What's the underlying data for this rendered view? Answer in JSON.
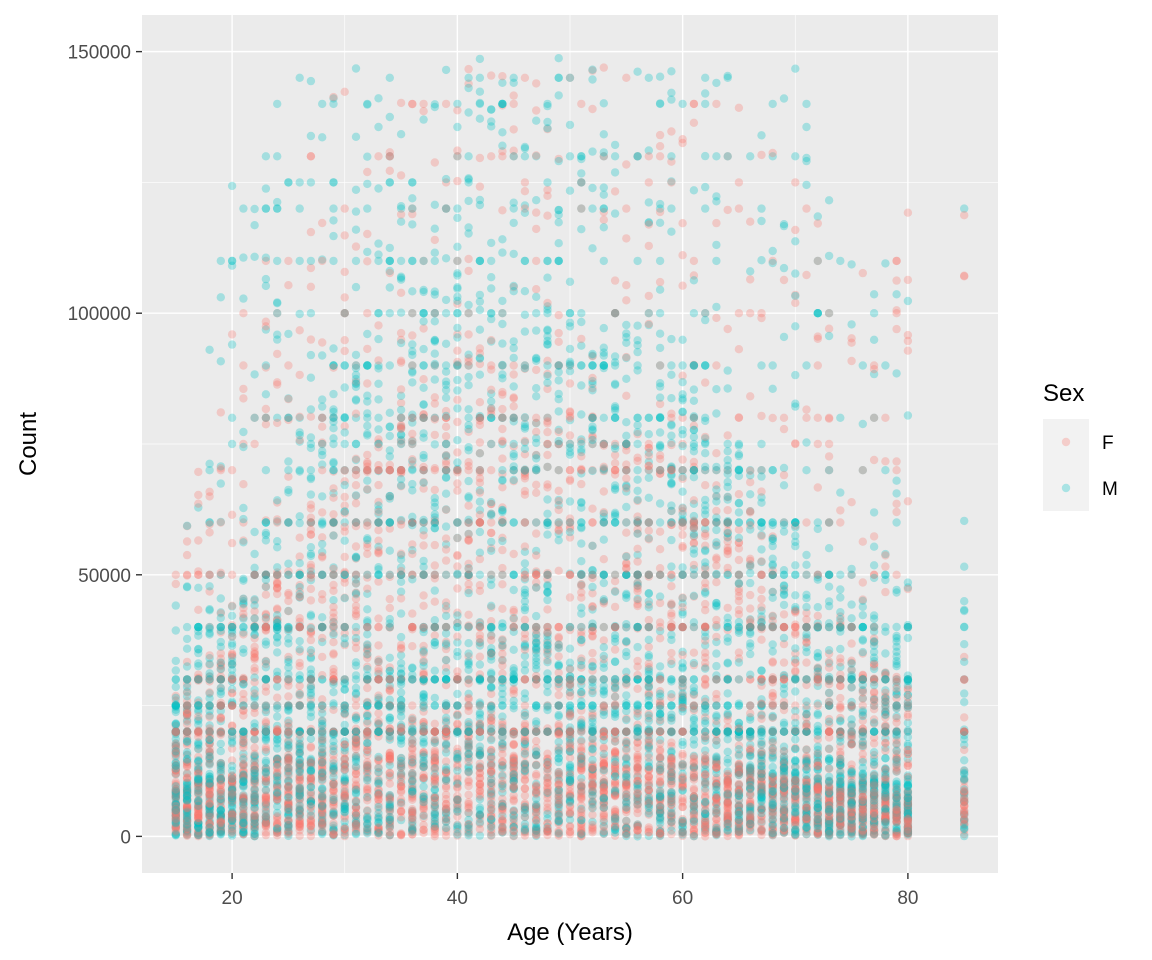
{
  "chart_data": {
    "type": "scatter",
    "title": "",
    "xlabel": "Age (Years)",
    "ylabel": "Count",
    "xlim": [
      12,
      88
    ],
    "ylim": [
      -7000,
      157000
    ],
    "x_ticks": [
      20,
      40,
      60,
      80
    ],
    "x_tick_labels": [
      "20",
      "40",
      "60",
      "80"
    ],
    "y_ticks": [
      0,
      50000,
      100000,
      150000
    ],
    "y_tick_labels": [
      "0",
      "50000",
      "100000",
      "150000"
    ],
    "grid": true,
    "legend": {
      "title": "Sex",
      "position": "right"
    },
    "colors": {
      "F": "#F8766D",
      "M": "#00BFC4",
      "panel": "#EBEBEB",
      "grid": "#FFFFFF"
    },
    "opacity": 0.3,
    "series": [
      {
        "name": "F",
        "color": "#F8766D",
        "density": [
          {
            "x": 15,
            "q50": 9000,
            "q90": 25000,
            "max": 60000
          },
          {
            "x": 20,
            "q50": 12000,
            "q90": 40000,
            "max": 100000
          },
          {
            "x": 25,
            "q50": 16000,
            "q90": 55000,
            "max": 130000
          },
          {
            "x": 30,
            "q50": 20000,
            "q90": 70000,
            "max": 145000
          },
          {
            "x": 35,
            "q50": 22000,
            "q90": 80000,
            "max": 148000
          },
          {
            "x": 40,
            "q50": 23000,
            "q90": 85000,
            "max": 148000
          },
          {
            "x": 45,
            "q50": 22000,
            "q90": 85000,
            "max": 148000
          },
          {
            "x": 50,
            "q50": 21000,
            "q90": 82000,
            "max": 148000
          },
          {
            "x": 55,
            "q50": 19000,
            "q90": 78000,
            "max": 148000
          },
          {
            "x": 60,
            "q50": 17000,
            "q90": 70000,
            "max": 145000
          },
          {
            "x": 65,
            "q50": 14000,
            "q90": 60000,
            "max": 140000
          },
          {
            "x": 70,
            "q50": 11000,
            "q90": 45000,
            "max": 125000
          },
          {
            "x": 75,
            "q50": 9000,
            "q90": 35000,
            "max": 110000
          },
          {
            "x": 80,
            "q50": 8000,
            "q90": 30000,
            "max": 120000
          },
          {
            "x": 85,
            "q50": 9000,
            "q90": 30000,
            "max": 130000
          }
        ]
      },
      {
        "name": "M",
        "color": "#00BFC4",
        "density": [
          {
            "x": 15,
            "q50": 10000,
            "q90": 30000,
            "max": 45000
          },
          {
            "x": 20,
            "q50": 14000,
            "q90": 45000,
            "max": 130000
          },
          {
            "x": 25,
            "q50": 22000,
            "q90": 70000,
            "max": 145000
          },
          {
            "x": 30,
            "q50": 30000,
            "q90": 90000,
            "max": 148000
          },
          {
            "x": 35,
            "q50": 36000,
            "q90": 100000,
            "max": 149000
          },
          {
            "x": 40,
            "q50": 38000,
            "q90": 105000,
            "max": 149000
          },
          {
            "x": 45,
            "q50": 38000,
            "q90": 105000,
            "max": 149000
          },
          {
            "x": 50,
            "q50": 36000,
            "q90": 100000,
            "max": 149000
          },
          {
            "x": 55,
            "q50": 33000,
            "q90": 95000,
            "max": 149000
          },
          {
            "x": 60,
            "q50": 29000,
            "q90": 88000,
            "max": 149000
          },
          {
            "x": 65,
            "q50": 24000,
            "q90": 75000,
            "max": 145000
          },
          {
            "x": 70,
            "q50": 18000,
            "q90": 60000,
            "max": 148000
          },
          {
            "x": 75,
            "q50": 13000,
            "q90": 45000,
            "max": 120000
          },
          {
            "x": 80,
            "q50": 10000,
            "q90": 40000,
            "max": 105000
          },
          {
            "x": 85,
            "q50": 12000,
            "q90": 45000,
            "max": 143000
          }
        ]
      }
    ],
    "x_values": [
      15,
      16,
      17,
      18,
      19,
      20,
      21,
      22,
      23,
      24,
      25,
      26,
      27,
      28,
      29,
      30,
      31,
      32,
      33,
      34,
      35,
      36,
      37,
      38,
      39,
      40,
      41,
      42,
      43,
      44,
      45,
      46,
      47,
      48,
      49,
      50,
      51,
      52,
      53,
      54,
      55,
      56,
      57,
      58,
      59,
      60,
      61,
      62,
      63,
      64,
      65,
      66,
      67,
      68,
      69,
      70,
      71,
      72,
      73,
      74,
      75,
      76,
      77,
      78,
      79,
      80,
      85
    ],
    "round_values": [
      10000,
      20000,
      25000,
      30000,
      40000,
      50000,
      60000,
      70000,
      75000,
      80000,
      90000,
      100000,
      110000,
      120000,
      125000,
      130000,
      140000,
      145000
    ]
  }
}
